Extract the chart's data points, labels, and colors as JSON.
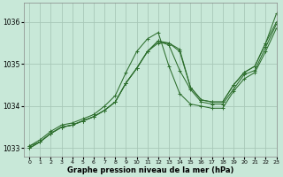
{
  "xlabel": "Graphe pression niveau de la mer (hPa)",
  "bg_color": "#c8e8d8",
  "grid_color": "#a8c8b8",
  "line_color": "#2d6e2d",
  "xlim": [
    -0.5,
    23
  ],
  "ylim": [
    1032.8,
    1036.45
  ],
  "yticks": [
    1033,
    1034,
    1035,
    1036
  ],
  "xticks": [
    0,
    1,
    2,
    3,
    4,
    5,
    6,
    7,
    8,
    9,
    10,
    11,
    12,
    13,
    14,
    15,
    16,
    17,
    18,
    19,
    20,
    21,
    22,
    23
  ],
  "series": [
    [
      1033.0,
      1033.15,
      1033.35,
      1033.5,
      1033.55,
      1033.65,
      1033.75,
      1033.9,
      1034.1,
      1034.55,
      1034.9,
      1035.3,
      1035.55,
      1035.45,
      1034.85,
      1034.4,
      1034.1,
      1034.05,
      1034.05,
      1034.4,
      1034.75,
      1034.85,
      1035.4,
      1035.95
    ],
    [
      1033.05,
      1033.2,
      1033.4,
      1033.55,
      1033.6,
      1033.7,
      1033.8,
      1034.0,
      1034.25,
      1034.8,
      1035.3,
      1035.6,
      1035.75,
      1034.95,
      1034.3,
      1034.05,
      1034.0,
      1033.95,
      1033.95,
      1034.35,
      1034.65,
      1034.8,
      1035.3,
      1035.85
    ],
    [
      1033.0,
      1033.15,
      1033.35,
      1033.5,
      1033.55,
      1033.65,
      1033.75,
      1033.9,
      1034.1,
      1034.55,
      1034.9,
      1035.3,
      1035.55,
      1035.5,
      1035.35,
      1034.45,
      1034.15,
      1034.1,
      1034.1,
      1034.5,
      1034.8,
      1034.95,
      1035.5,
      1036.0
    ],
    [
      1033.05,
      1033.15,
      1033.35,
      1033.5,
      1033.55,
      1033.65,
      1033.75,
      1033.9,
      1034.1,
      1034.55,
      1034.9,
      1035.3,
      1035.5,
      1035.5,
      1035.3,
      1034.45,
      1034.15,
      1034.1,
      1034.1,
      1034.5,
      1034.8,
      1034.95,
      1035.5,
      1036.2
    ]
  ]
}
